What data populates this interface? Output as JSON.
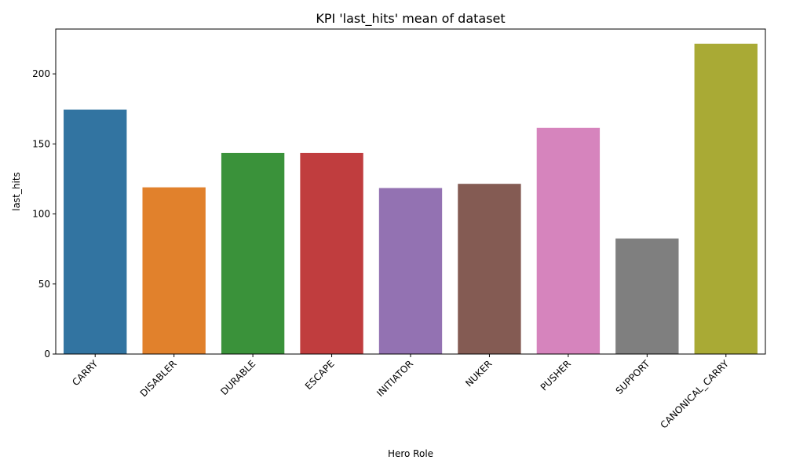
{
  "chart_data": {
    "type": "bar",
    "title": "KPI 'last_hits' mean of dataset",
    "xlabel": "Hero Role",
    "ylabel": "last_hits",
    "categories": [
      "CARRY",
      "DISABLER",
      "DURABLE",
      "ESCAPE",
      "INITIATOR",
      "NUKER",
      "PUSHER",
      "SUPPORT",
      "CANONICAL_CARRY"
    ],
    "values": [
      174.5,
      119,
      143.5,
      143.5,
      118.5,
      121.5,
      161.5,
      82.5,
      221.5
    ],
    "colors": [
      "#3274a1",
      "#e1812c",
      "#3a923a",
      "#c03d3e",
      "#9372b2",
      "#845b53",
      "#d684bd",
      "#7f7f7f",
      "#a9aa35"
    ],
    "yticks": [
      0,
      50,
      100,
      150,
      200
    ],
    "ylim": [
      0,
      232
    ],
    "grid": false,
    "legend": "none",
    "x_tick_rotation_deg": 45
  }
}
